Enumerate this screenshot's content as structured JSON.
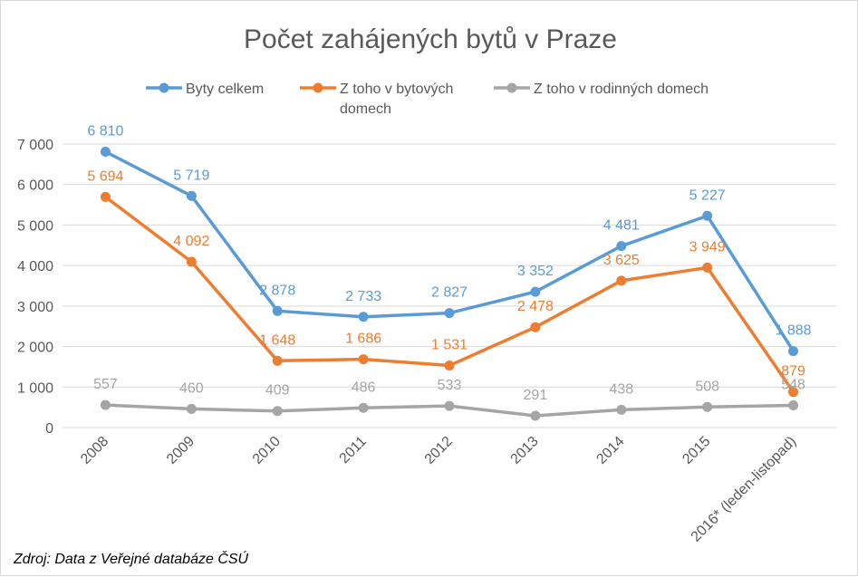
{
  "chart_data": {
    "type": "line",
    "title": "Počet zahájených bytů v Praze",
    "categories": [
      "2008",
      "2009",
      "2010",
      "2011",
      "2012",
      "2013",
      "2014",
      "2015",
      "2016* (leden-listopad)"
    ],
    "ylim": [
      0,
      7000
    ],
    "yticks": [
      0,
      1000,
      2000,
      3000,
      4000,
      5000,
      6000,
      7000
    ],
    "ytick_labels": [
      "0",
      "1 000",
      "2 000",
      "3 000",
      "4 000",
      "5 000",
      "6 000",
      "7 000"
    ],
    "grid": true,
    "legend_position": "top",
    "series": [
      {
        "name": "Byty celkem",
        "color": "#5B9BD5",
        "values": [
          6810,
          5719,
          2878,
          2733,
          2827,
          3352,
          4481,
          5227,
          1888
        ],
        "labels": [
          "6 810",
          "5 719",
          "2 878",
          "2 733",
          "2 827",
          "3 352",
          "4 481",
          "5 227",
          "1 888"
        ]
      },
      {
        "name": "Z toho v bytových domech",
        "name_lines": [
          "Z toho v bytových",
          "domech"
        ],
        "color": "#ED7D31",
        "values": [
          5694,
          4092,
          1648,
          1686,
          1531,
          2478,
          3625,
          3949,
          879
        ],
        "labels": [
          "5 694",
          "4 092",
          "1 648",
          "1 686",
          "1 531",
          "2 478",
          "3 625",
          "3 949",
          "879"
        ]
      },
      {
        "name": "Z toho v rodinných domech",
        "color": "#A5A5A5",
        "values": [
          557,
          460,
          409,
          486,
          533,
          291,
          438,
          508,
          548
        ],
        "labels": [
          "557",
          "460",
          "409",
          "486",
          "533",
          "291",
          "438",
          "508",
          "548"
        ]
      }
    ]
  },
  "source": "Zdroj: Data z Veřejné databáze ČSÚ"
}
